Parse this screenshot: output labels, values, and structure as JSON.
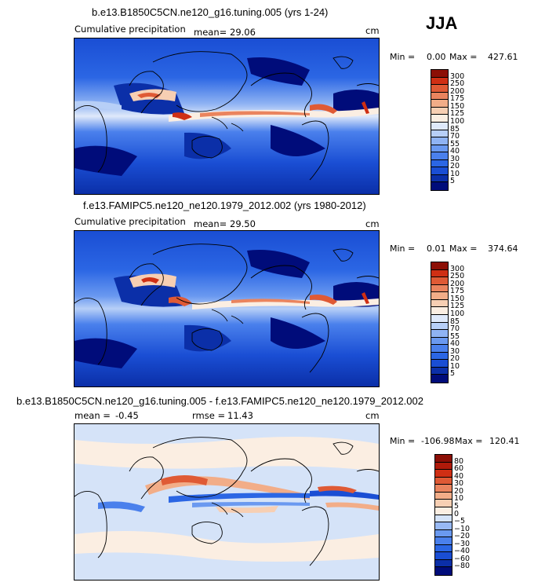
{
  "season": "JJA",
  "panels": [
    {
      "title": "b.e13.B1850C5CN.ne120_g16.tuning.005 (yrs 1-24)",
      "left_label": "Cumulative precipitation",
      "mean_label": "mean=",
      "mean_value": "29.06",
      "rmse_label": "",
      "rmse_value": "",
      "units": "cm",
      "min_label": "Min =",
      "min_value": "0.00",
      "max_label": "Max =",
      "max_value": "427.61"
    },
    {
      "title": "f.e13.FAMIPC5.ne120_ne120.1979_2012.002 (yrs 1980-2012)",
      "left_label": "Cumulative precipitation",
      "mean_label": "mean=",
      "mean_value": "29.50",
      "rmse_label": "",
      "rmse_value": "",
      "units": "cm",
      "min_label": "Min =",
      "min_value": "0.01",
      "max_label": "Max =",
      "max_value": "374.64"
    },
    {
      "title": "b.e13.B1850C5CN.ne120_g16.tuning.005 - f.e13.FAMIPC5.ne120_ne120.1979_2012.002",
      "left_label": "",
      "mean_label": "mean =",
      "mean_value": "-0.45",
      "rmse_label": "rmse =",
      "rmse_value": "11.43",
      "units": "cm",
      "min_label": "Min =",
      "min_value": "-106.98",
      "max_label": "Max =",
      "max_value": "120.41"
    }
  ],
  "chart_data": [
    {
      "type": "heatmap",
      "title": "b.e13.B1850C5CN.ne120_g16.tuning.005 (yrs 1-24)",
      "variable": "Cumulative precipitation",
      "units": "cm",
      "mean": 29.06,
      "min": 0.0,
      "max": 427.61,
      "colorbar_levels": [
        5,
        10,
        20,
        30,
        40,
        55,
        70,
        85,
        100,
        125,
        150,
        175,
        200,
        250,
        300
      ],
      "colorbar_colors": [
        "#000c7a",
        "#0b2fa8",
        "#1a4ed4",
        "#2b66e4",
        "#4a80ec",
        "#6a99f0",
        "#8fb3f3",
        "#b7cff7",
        "#dfe9fa",
        "#fbeee2",
        "#f7cfb3",
        "#f2ad88",
        "#ea845e",
        "#df5a35",
        "#cf2f14",
        "#8c0f06"
      ]
    },
    {
      "type": "heatmap",
      "title": "f.e13.FAMIPC5.ne120_ne120.1979_2012.002 (yrs 1980-2012)",
      "variable": "Cumulative precipitation",
      "units": "cm",
      "mean": 29.5,
      "min": 0.01,
      "max": 374.64,
      "colorbar_levels": [
        5,
        10,
        20,
        30,
        40,
        55,
        70,
        85,
        100,
        125,
        150,
        175,
        200,
        250,
        300
      ],
      "colorbar_colors": [
        "#000c7a",
        "#0b2fa8",
        "#1a4ed4",
        "#2b66e4",
        "#4a80ec",
        "#6a99f0",
        "#8fb3f3",
        "#b7cff7",
        "#dfe9fa",
        "#fbeee2",
        "#f7cfb3",
        "#f2ad88",
        "#ea845e",
        "#df5a35",
        "#cf2f14",
        "#8c0f06"
      ]
    },
    {
      "type": "heatmap",
      "title": "b.e13.B1850C5CN.ne120_g16.tuning.005 - f.e13.FAMIPC5.ne120_ne120.1979_2012.002",
      "units": "cm",
      "mean": -0.45,
      "rmse": 11.43,
      "min": -106.98,
      "max": 120.41,
      "colorbar_levels": [
        -80,
        -60,
        -40,
        -30,
        -20,
        -10,
        -5,
        0,
        5,
        10,
        20,
        30,
        40,
        60,
        80
      ],
      "colorbar_colors": [
        "#000c7a",
        "#0b2fa8",
        "#1a4ed4",
        "#2b66e4",
        "#4a80ec",
        "#6a99f0",
        "#98b9f4",
        "#d5e3f8",
        "#fbeee2",
        "#f7cfb3",
        "#f2ad88",
        "#ea845e",
        "#df5a35",
        "#cf2f14",
        "#b01a0a",
        "#8c0f06"
      ]
    }
  ]
}
